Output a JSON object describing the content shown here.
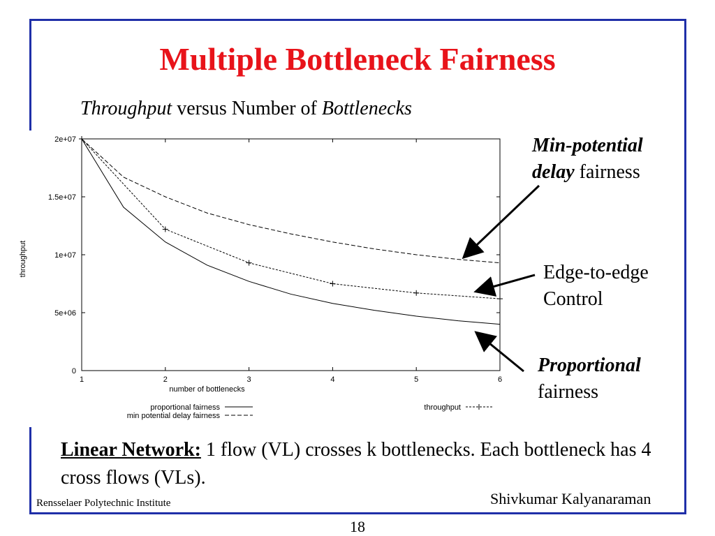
{
  "slide": {
    "title": "Multiple Bottleneck Fairness",
    "subtitle_a": "Throughput",
    "subtitle_b": " versus Number of ",
    "subtitle_c": "Bottlenecks",
    "ann_min_a": "Min-potential",
    "ann_min_b": "delay",
    "ann_min_c": " fairness",
    "ann_edge_1": "Edge-to-edge",
    "ann_edge_2": "Control",
    "ann_prop_1": "Proportional",
    "ann_prop_2": "fairness",
    "bottom_label": "Linear Network:",
    "bottom_text": " 1 flow (VL) crosses k bottlenecks. Each bottleneck has 4 cross flows (VLs).",
    "footer_left": "Rensselaer Polytechnic Institute",
    "footer_right": "Shivkumar Kalyanaraman",
    "page_number": "18"
  },
  "chart_data": {
    "type": "line",
    "xlabel": "number of bottlenecks",
    "ylabel": "throughput",
    "xlim": [
      1,
      6
    ],
    "ylim": [
      0,
      20000000
    ],
    "x_ticks": [
      "1",
      "2",
      "3",
      "4",
      "5",
      "6"
    ],
    "y_ticks": [
      "0",
      "5e+06",
      "1e+07",
      "1.5e+07",
      "2e+07"
    ],
    "grid": false,
    "legend_position": "bottom",
    "series": [
      {
        "name": "proportional fairness",
        "style": "solid",
        "x": [
          1,
          1.5,
          2,
          2.5,
          3,
          3.5,
          4,
          4.5,
          5,
          5.5,
          6
        ],
        "values": [
          20000000,
          14100000,
          11100000,
          9100000,
          7700000,
          6600000,
          5800000,
          5200000,
          4700000,
          4300000,
          4000000
        ]
      },
      {
        "name": "min potential delay fairness",
        "style": "long-dash",
        "x": [
          1,
          1.5,
          2,
          2.5,
          3,
          3.5,
          4,
          4.5,
          5,
          5.5,
          6
        ],
        "values": [
          20000000,
          16700000,
          15000000,
          13600000,
          12600000,
          11800000,
          11100000,
          10500000,
          10000000,
          9600000,
          9300000
        ]
      },
      {
        "name": "throughput",
        "style": "short-dash with plus markers",
        "x": [
          1,
          2,
          3,
          4,
          5,
          6
        ],
        "values": [
          20000000,
          12200000,
          9300000,
          7500000,
          6700000,
          6200000
        ]
      }
    ]
  }
}
